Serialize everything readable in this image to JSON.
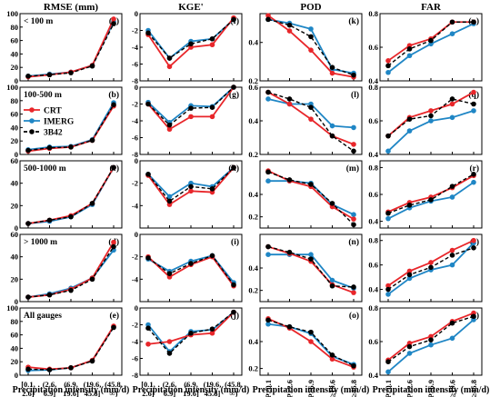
{
  "figure": {
    "xlabel": "Precipitation intensity (mm/d)",
    "row_labels": [
      "< 100 m",
      "100-500 m",
      "500-1000 m",
      "> 1000 m",
      "All gauges"
    ],
    "legend": [
      {
        "name": "CRT",
        "color": "#e8262a",
        "dash": false
      },
      {
        "name": "IMERG",
        "color": "#1f86c5",
        "dash": false
      },
      {
        "name": "3B42",
        "color": "#000000",
        "dash": true
      }
    ],
    "x_tick_labels_interval": [
      [
        "[0.1,",
        "2.6]"
      ],
      [
        "(2.6,",
        "6.9]"
      ],
      [
        "(6.9,",
        "19.6]"
      ],
      [
        "(19.6,",
        "45.8]"
      ],
      [
        "(45.8,",
        "∞)"
      ]
    ],
    "x_tick_labels_threshold": [
      "P≥0.1",
      "P≥2.6",
      "P≥6.9",
      "P≥19.6",
      "P≥45.8"
    ]
  },
  "chart_data": [
    {
      "panel": "a",
      "column": "RMSE (mm)",
      "type": "line",
      "ylim": [
        0,
        100
      ],
      "yticks": [
        0,
        20,
        40,
        60,
        80,
        100
      ],
      "series": [
        {
          "name": "CRT",
          "values": [
            6,
            9,
            13,
            23,
            92
          ]
        },
        {
          "name": "IMERG",
          "values": [
            7,
            10,
            13,
            23,
            88
          ]
        },
        {
          "name": "3B42",
          "values": [
            7,
            9,
            12,
            22,
            85
          ]
        }
      ]
    },
    {
      "panel": "b",
      "column": "RMSE (mm)",
      "type": "line",
      "ylim": [
        0,
        100
      ],
      "yticks": [
        0,
        20,
        40,
        60,
        80,
        100
      ],
      "series": [
        {
          "name": "CRT",
          "values": [
            5,
            9,
            11,
            21,
            72
          ]
        },
        {
          "name": "IMERG",
          "values": [
            7,
            11,
            12,
            22,
            77
          ]
        },
        {
          "name": "3B42",
          "values": [
            6,
            10,
            11,
            21,
            74
          ]
        }
      ]
    },
    {
      "panel": "c",
      "column": "RMSE (mm)",
      "type": "line",
      "ylim": [
        0,
        60
      ],
      "yticks": [
        0,
        20,
        40,
        60
      ],
      "series": [
        {
          "name": "CRT",
          "values": [
            4,
            7,
            11,
            22,
            54
          ]
        },
        {
          "name": "IMERG",
          "values": [
            4,
            6,
            10,
            21,
            54
          ]
        },
        {
          "name": "3B42",
          "values": [
            4,
            7,
            10,
            22,
            54
          ]
        }
      ]
    },
    {
      "panel": "d",
      "column": "RMSE (mm)",
      "type": "line",
      "ylim": [
        0,
        60
      ],
      "yticks": [
        0,
        20,
        40,
        60
      ],
      "series": [
        {
          "name": "CRT",
          "values": [
            4,
            6,
            11,
            21,
            53
          ]
        },
        {
          "name": "IMERG",
          "values": [
            4,
            7,
            12,
            21,
            46
          ]
        },
        {
          "name": "3B42",
          "values": [
            4,
            6,
            10,
            20,
            49
          ]
        }
      ]
    },
    {
      "panel": "e",
      "column": "RMSE (mm)",
      "type": "line",
      "ylim": [
        0,
        100
      ],
      "yticks": [
        0,
        20,
        40,
        60,
        80,
        100
      ],
      "series": [
        {
          "name": "CRT",
          "values": [
            12,
            9,
            11,
            22,
            73
          ]
        },
        {
          "name": "IMERG",
          "values": [
            7,
            8,
            11,
            22,
            72
          ]
        },
        {
          "name": "3B42",
          "values": [
            9,
            8,
            11,
            21,
            71
          ]
        }
      ]
    },
    {
      "panel": "f",
      "column": "KGE'",
      "type": "line",
      "ylim": [
        -8,
        0
      ],
      "yticks": [
        -8,
        -6,
        -4,
        -2,
        0
      ],
      "series": [
        {
          "name": "CRT",
          "values": [
            -2.5,
            -6.3,
            -4.0,
            -3.7,
            -0.5
          ]
        },
        {
          "name": "IMERG",
          "values": [
            -2.0,
            -5.3,
            -3.3,
            -3.0,
            -0.7
          ]
        },
        {
          "name": "3B42",
          "values": [
            -2.3,
            -5.3,
            -3.6,
            -3.0,
            -0.7
          ]
        }
      ]
    },
    {
      "panel": "g",
      "column": "KGE'",
      "type": "line",
      "ylim": [
        -8,
        0
      ],
      "yticks": [
        -8,
        -6,
        -4,
        -2,
        0
      ],
      "series": [
        {
          "name": "CRT",
          "values": [
            -2.0,
            -5.0,
            -3.5,
            -3.5,
            0
          ]
        },
        {
          "name": "IMERG",
          "values": [
            -1.8,
            -4.2,
            -2.2,
            -2.3,
            0
          ]
        },
        {
          "name": "3B42",
          "values": [
            -2.0,
            -4.5,
            -2.5,
            -2.4,
            0
          ]
        }
      ]
    },
    {
      "panel": "h",
      "column": "KGE'",
      "type": "line",
      "ylim": [
        -6,
        0
      ],
      "yticks": [
        -4,
        -2,
        0
      ],
      "series": [
        {
          "name": "CRT",
          "values": [
            -1.3,
            -3.9,
            -2.7,
            -2.8,
            -0.6
          ]
        },
        {
          "name": "IMERG",
          "values": [
            -1.2,
            -3.2,
            -2.0,
            -2.3,
            -0.6
          ]
        },
        {
          "name": "3B42",
          "values": [
            -1.2,
            -3.6,
            -2.3,
            -2.5,
            -0.6
          ]
        }
      ]
    },
    {
      "panel": "i",
      "column": "KGE'",
      "type": "line",
      "ylim": [
        -6,
        0
      ],
      "yticks": [
        -4,
        -2,
        0
      ],
      "series": [
        {
          "name": "CRT",
          "values": [
            -2.0,
            -3.8,
            -2.7,
            -2.0,
            -4.6
          ]
        },
        {
          "name": "IMERG",
          "values": [
            -2.2,
            -3.3,
            -2.4,
            -1.9,
            -4.3
          ]
        },
        {
          "name": "3B42",
          "values": [
            -2.1,
            -3.5,
            -2.6,
            -1.9,
            -4.5
          ]
        }
      ]
    },
    {
      "panel": "j",
      "column": "KGE'",
      "type": "line",
      "ylim": [
        -8,
        0
      ],
      "yticks": [
        -8,
        -6,
        -4,
        -2,
        0
      ],
      "series": [
        {
          "name": "CRT",
          "values": [
            -4.3,
            -4.0,
            -3.2,
            -3.0,
            -0.5
          ]
        },
        {
          "name": "IMERG",
          "values": [
            -2.0,
            -5.2,
            -2.8,
            -2.6,
            -0.5
          ]
        },
        {
          "name": "3B42",
          "values": [
            -2.4,
            -5.4,
            -3.0,
            -2.5,
            -0.5
          ]
        }
      ]
    },
    {
      "panel": "k",
      "column": "POD",
      "type": "line",
      "ylim": [
        0.2,
        0.55
      ],
      "yticks": [
        0.2,
        0.4
      ],
      "series": [
        {
          "name": "CRT",
          "values": [
            0.54,
            0.46,
            0.36,
            0.24,
            0.22
          ]
        },
        {
          "name": "IMERG",
          "values": [
            0.52,
            0.5,
            0.47,
            0.26,
            0.24
          ]
        },
        {
          "name": "3B42",
          "values": [
            0.52,
            0.49,
            0.43,
            0.27,
            0.23
          ]
        }
      ]
    },
    {
      "panel": "l",
      "column": "POD",
      "type": "line",
      "ylim": [
        0.2,
        0.6
      ],
      "yticks": [
        0.2,
        0.4,
        0.6
      ],
      "series": [
        {
          "name": "CRT",
          "values": [
            0.57,
            0.5,
            0.41,
            0.31,
            0.26
          ]
        },
        {
          "name": "IMERG",
          "values": [
            0.53,
            0.5,
            0.5,
            0.37,
            0.36
          ]
        },
        {
          "name": "3B42",
          "values": [
            0.57,
            0.53,
            0.48,
            0.31,
            0.22
          ]
        }
      ]
    },
    {
      "panel": "m",
      "column": "POD",
      "type": "line",
      "ylim": [
        0.1,
        0.7
      ],
      "yticks": [
        0.2,
        0.4
      ],
      "series": [
        {
          "name": "CRT",
          "values": [
            0.61,
            0.52,
            0.47,
            0.29,
            0.18
          ]
        },
        {
          "name": "IMERG",
          "values": [
            0.52,
            0.52,
            0.5,
            0.31,
            0.22
          ]
        },
        {
          "name": "3B42",
          "values": [
            0.6,
            0.53,
            0.49,
            0.32,
            0.13
          ]
        }
      ]
    },
    {
      "panel": "n",
      "column": "POD",
      "type": "line",
      "ylim": [
        0.1,
        0.7
      ],
      "yticks": [
        0.2,
        0.4
      ],
      "series": [
        {
          "name": "CRT",
          "values": [
            0.59,
            0.53,
            0.46,
            0.25,
            0.18
          ]
        },
        {
          "name": "IMERG",
          "values": [
            0.52,
            0.52,
            0.52,
            0.29,
            0.22
          ]
        },
        {
          "name": "3B42",
          "values": [
            0.59,
            0.54,
            0.48,
            0.24,
            0.23
          ]
        }
      ]
    },
    {
      "panel": "o",
      "column": "POD",
      "type": "line",
      "ylim": [
        0.15,
        0.65
      ],
      "yticks": [
        0.2,
        0.4
      ],
      "series": [
        {
          "name": "CRT",
          "values": [
            0.57,
            0.5,
            0.4,
            0.27,
            0.21
          ]
        },
        {
          "name": "IMERG",
          "values": [
            0.53,
            0.51,
            0.46,
            0.29,
            0.23
          ]
        },
        {
          "name": "3B42",
          "values": [
            0.56,
            0.51,
            0.47,
            0.3,
            0.22
          ]
        }
      ]
    },
    {
      "panel": "p",
      "column": "FAR",
      "type": "line",
      "ylim": [
        0.4,
        0.8
      ],
      "yticks": [
        0.4,
        0.6,
        0.8
      ],
      "series": [
        {
          "name": "CRT",
          "values": [
            0.52,
            0.61,
            0.65,
            0.75,
            0.75
          ]
        },
        {
          "name": "IMERG",
          "values": [
            0.45,
            0.55,
            0.62,
            0.68,
            0.74
          ]
        },
        {
          "name": "3B42",
          "values": [
            0.49,
            0.59,
            0.64,
            0.75,
            0.75
          ]
        }
      ]
    },
    {
      "panel": "q",
      "column": "FAR",
      "type": "line",
      "ylim": [
        0.4,
        0.8
      ],
      "yticks": [
        0.4,
        0.6,
        0.8
      ],
      "series": [
        {
          "name": "CRT",
          "values": [
            0.51,
            0.62,
            0.66,
            0.7,
            0.77
          ]
        },
        {
          "name": "IMERG",
          "values": [
            0.42,
            0.54,
            0.6,
            0.62,
            0.66
          ]
        },
        {
          "name": "3B42",
          "values": [
            0.51,
            0.61,
            0.63,
            0.73,
            0.7
          ]
        }
      ]
    },
    {
      "panel": "r",
      "column": "FAR",
      "type": "line",
      "ylim": [
        0.35,
        0.85
      ],
      "yticks": [
        0.4,
        0.6,
        0.8
      ],
      "series": [
        {
          "name": "CRT",
          "values": [
            0.47,
            0.54,
            0.58,
            0.65,
            0.74
          ]
        },
        {
          "name": "IMERG",
          "values": [
            0.42,
            0.5,
            0.55,
            0.58,
            0.69
          ]
        },
        {
          "name": "3B42",
          "values": [
            0.46,
            0.52,
            0.56,
            0.66,
            0.75
          ]
        }
      ]
    },
    {
      "panel": "s",
      "column": "FAR",
      "type": "line",
      "ylim": [
        0.3,
        0.85
      ],
      "yticks": [
        0.4,
        0.6,
        0.8
      ],
      "series": [
        {
          "name": "CRT",
          "values": [
            0.43,
            0.55,
            0.62,
            0.72,
            0.8
          ]
        },
        {
          "name": "IMERG",
          "values": [
            0.36,
            0.49,
            0.56,
            0.6,
            0.78
          ]
        },
        {
          "name": "3B42",
          "values": [
            0.4,
            0.52,
            0.58,
            0.68,
            0.74
          ]
        }
      ]
    },
    {
      "panel": "t",
      "column": "FAR",
      "type": "line",
      "ylim": [
        0.4,
        0.8
      ],
      "yticks": [
        0.4,
        0.6,
        0.8
      ],
      "series": [
        {
          "name": "CRT",
          "values": [
            0.49,
            0.59,
            0.63,
            0.72,
            0.77
          ]
        },
        {
          "name": "IMERG",
          "values": [
            0.42,
            0.53,
            0.58,
            0.62,
            0.73
          ]
        },
        {
          "name": "3B42",
          "values": [
            0.48,
            0.57,
            0.61,
            0.71,
            0.75
          ]
        }
      ]
    }
  ]
}
